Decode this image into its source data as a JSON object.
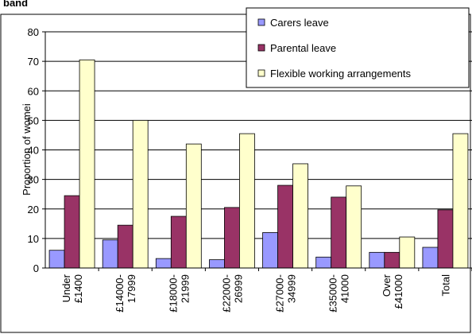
{
  "chart_data": {
    "type": "bar",
    "title": "band",
    "y_label": "Proportion of womei",
    "categories": [
      "Under\n£1400",
      "£14000-\n17999",
      "£18000-\n21999",
      "£22000-\n26999",
      "£27000-\n34999",
      "£35000-\n41000",
      "Over\n£41000",
      "Total"
    ],
    "series": [
      {
        "name": "Carers leave",
        "color": "#9999ff",
        "values": [
          6,
          9.5,
          3.2,
          2.8,
          12,
          3.7,
          5.3,
          7
        ]
      },
      {
        "name": "Parental leave",
        "color": "#993366",
        "values": [
          24.5,
          14.5,
          17.5,
          20.5,
          28,
          24,
          5.3,
          19.7
        ]
      },
      {
        "name": "Flexible working arrangements",
        "color": "#ffffcc",
        "values": [
          70.5,
          50,
          42,
          45.5,
          35.3,
          27.8,
          10.5,
          45.5
        ]
      }
    ],
    "ylim": [
      0,
      80
    ],
    "yticks": [
      0,
      10,
      20,
      30,
      40,
      50,
      60,
      70,
      80
    ],
    "grid": true,
    "legend": "top-right"
  }
}
